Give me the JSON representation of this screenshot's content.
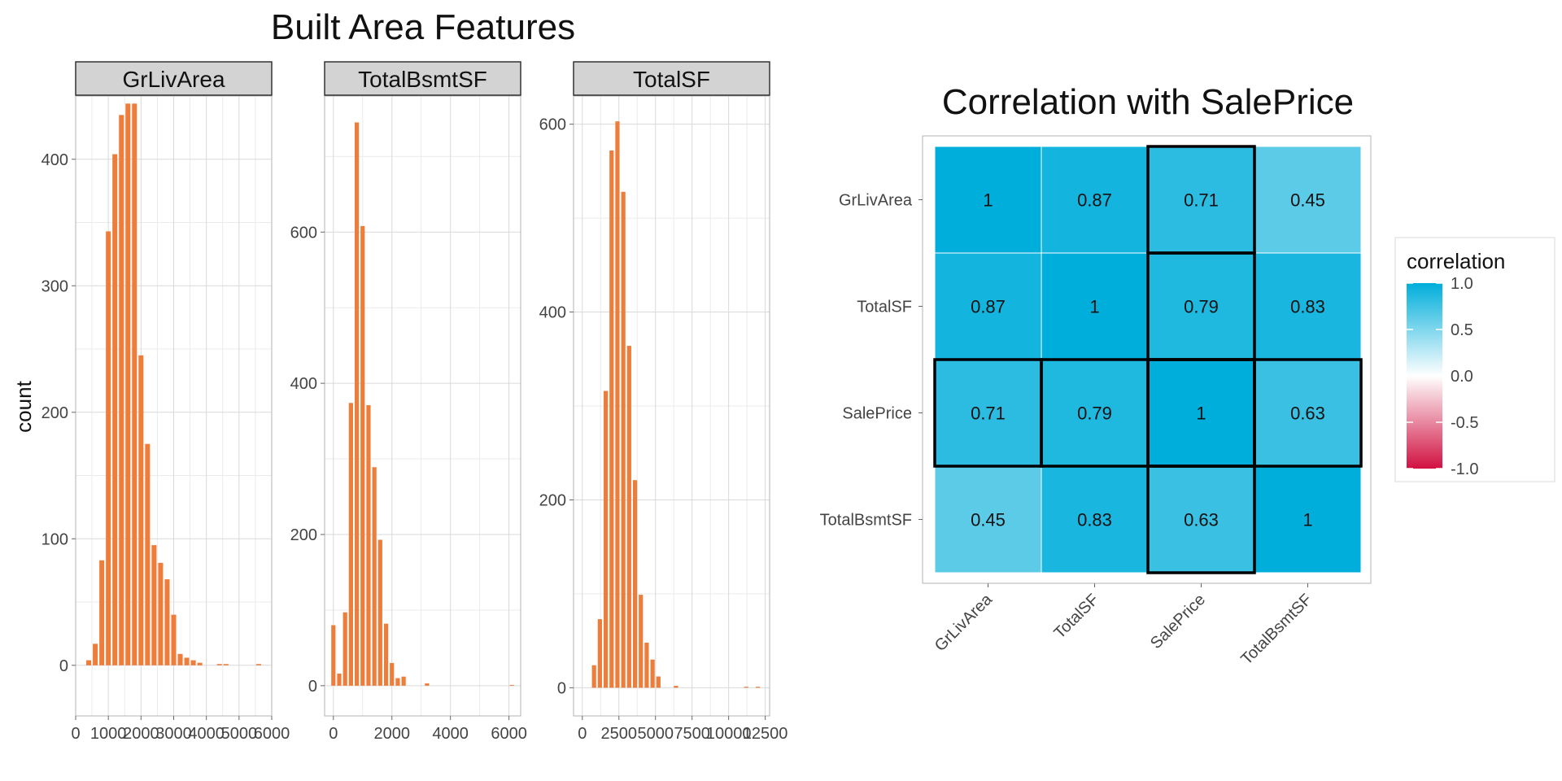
{
  "figure": {
    "left_title": "Built Area Features",
    "y_axis_label": "count",
    "bar_color": "#ED7D3A",
    "grid_color": "#D9D9D9",
    "strip_fill": "#D3D3D3"
  },
  "chart_data": [
    {
      "type": "bar",
      "title": "GrLivArea",
      "xlim": [
        0,
        6000
      ],
      "ylim": [
        -40,
        450
      ],
      "x_ticks": [
        0,
        1000,
        2000,
        3000,
        4000,
        5000,
        6000
      ],
      "x_tick_labels": [
        "0",
        "1000",
        "2000",
        "3000",
        "4000",
        "5000",
        "6000"
      ],
      "y_ticks": [
        0,
        100,
        200,
        300,
        400
      ],
      "y_tick_labels": [
        "0",
        "100",
        "200",
        "300",
        "400"
      ],
      "bin_width": 200,
      "bins": [
        {
          "x": 400,
          "count": 4
        },
        {
          "x": 600,
          "count": 17
        },
        {
          "x": 800,
          "count": 83
        },
        {
          "x": 1000,
          "count": 343
        },
        {
          "x": 1200,
          "count": 404
        },
        {
          "x": 1400,
          "count": 435
        },
        {
          "x": 1600,
          "count": 444
        },
        {
          "x": 1800,
          "count": 444
        },
        {
          "x": 2000,
          "count": 245
        },
        {
          "x": 2200,
          "count": 175
        },
        {
          "x": 2400,
          "count": 95
        },
        {
          "x": 2600,
          "count": 81
        },
        {
          "x": 2800,
          "count": 68
        },
        {
          "x": 3000,
          "count": 40
        },
        {
          "x": 3200,
          "count": 9
        },
        {
          "x": 3400,
          "count": 6
        },
        {
          "x": 3600,
          "count": 4
        },
        {
          "x": 3800,
          "count": 2
        },
        {
          "x": 4400,
          "count": 1
        },
        {
          "x": 4600,
          "count": 1
        },
        {
          "x": 5600,
          "count": 1
        }
      ]
    },
    {
      "type": "bar",
      "title": "TotalBsmtSF",
      "xlim": [
        -300,
        6400
      ],
      "ylim": [
        -40,
        780
      ],
      "x_ticks": [
        0,
        2000,
        4000,
        6000
      ],
      "x_tick_labels": [
        "0",
        "2000",
        "4000",
        "6000"
      ],
      "y_ticks": [
        0,
        200,
        400,
        600
      ],
      "y_tick_labels": [
        "0",
        "200",
        "400",
        "600"
      ],
      "bin_width": 200,
      "bins": [
        {
          "x": 0,
          "count": 80
        },
        {
          "x": 200,
          "count": 16
        },
        {
          "x": 400,
          "count": 97
        },
        {
          "x": 600,
          "count": 374
        },
        {
          "x": 800,
          "count": 745
        },
        {
          "x": 1000,
          "count": 608
        },
        {
          "x": 1200,
          "count": 371
        },
        {
          "x": 1400,
          "count": 289
        },
        {
          "x": 1600,
          "count": 193
        },
        {
          "x": 1800,
          "count": 82
        },
        {
          "x": 2000,
          "count": 30
        },
        {
          "x": 2200,
          "count": 10
        },
        {
          "x": 2400,
          "count": 12
        },
        {
          "x": 3200,
          "count": 3
        },
        {
          "x": 6100,
          "count": 1
        }
      ]
    },
    {
      "type": "bar",
      "title": "TotalSF",
      "xlim": [
        -600,
        12800
      ],
      "ylim": [
        -30,
        630
      ],
      "x_ticks": [
        0,
        2500,
        5000,
        7500,
        10000,
        12500
      ],
      "x_tick_labels": [
        "0",
        "2500",
        "5000",
        "7500",
        "10000",
        "12500"
      ],
      "y_ticks": [
        0,
        200,
        400,
        600
      ],
      "y_tick_labels": [
        "0",
        "200",
        "400",
        "600"
      ],
      "bin_width": 400,
      "bins": [
        {
          "x": 800,
          "count": 24
        },
        {
          "x": 1200,
          "count": 73
        },
        {
          "x": 1600,
          "count": 316
        },
        {
          "x": 2000,
          "count": 572
        },
        {
          "x": 2400,
          "count": 603
        },
        {
          "x": 2800,
          "count": 528
        },
        {
          "x": 3200,
          "count": 364
        },
        {
          "x": 3600,
          "count": 221
        },
        {
          "x": 4000,
          "count": 99
        },
        {
          "x": 4400,
          "count": 48
        },
        {
          "x": 4800,
          "count": 30
        },
        {
          "x": 5200,
          "count": 12
        },
        {
          "x": 6400,
          "count": 2
        },
        {
          "x": 11200,
          "count": 1
        },
        {
          "x": 12000,
          "count": 1
        }
      ]
    },
    {
      "type": "heatmap",
      "title": "Correlation with SalePrice",
      "x_categories": [
        "GrLivArea",
        "TotalSF",
        "SalePrice",
        "TotalBsmtSF"
      ],
      "y_categories": [
        "GrLivArea",
        "TotalSF",
        "SalePrice",
        "TotalBsmtSF"
      ],
      "values": [
        [
          1,
          0.87,
          0.71,
          0.45
        ],
        [
          0.87,
          1,
          0.79,
          0.83
        ],
        [
          0.71,
          0.79,
          1,
          0.63
        ],
        [
          0.45,
          0.83,
          0.63,
          1
        ]
      ],
      "value_labels": [
        [
          "1",
          "0.87",
          "0.71",
          "0.45"
        ],
        [
          "0.87",
          "1",
          "0.79",
          "0.83"
        ],
        [
          "0.71",
          "0.79",
          "1",
          "0.63"
        ],
        [
          "0.45",
          "0.83",
          "0.63",
          "1"
        ]
      ],
      "highlight_row": "SalePrice",
      "highlight_col": "SalePrice",
      "legend": {
        "title": "correlation",
        "placement": "right",
        "ticks": [
          1.0,
          0.5,
          0.0,
          -0.5,
          -1.0
        ],
        "tick_labels": [
          "1.0",
          "0.5",
          "0.0",
          "-0.5",
          "-1.0"
        ],
        "colors": {
          "high": "#00AEDB",
          "mid": "#FFFFFF",
          "low": "#D11141"
        }
      }
    }
  ]
}
